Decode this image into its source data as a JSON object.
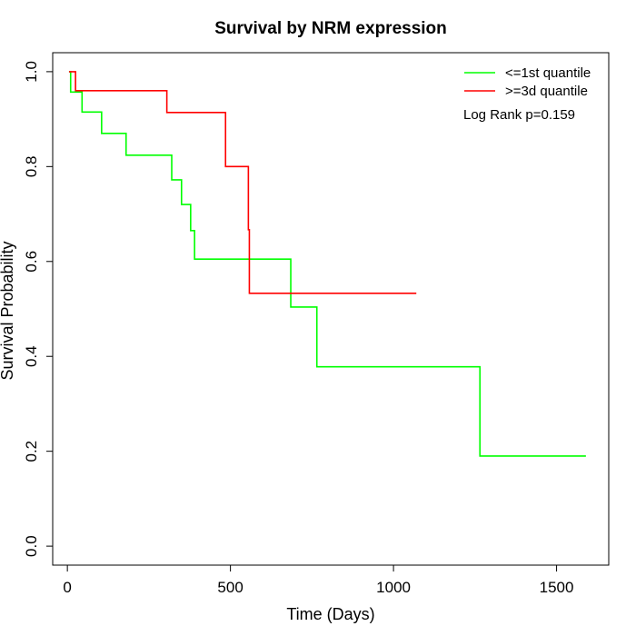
{
  "chart_data": {
    "type": "line",
    "title": "Survival by NRM expression",
    "xlabel": "Time (Days)",
    "ylabel": "Survival Probability",
    "xlim": [
      -45,
      1660
    ],
    "ylim": [
      -0.04,
      1.04
    ],
    "x_ticks": [
      0,
      500,
      1000,
      1500
    ],
    "y_ticks": [
      0.0,
      0.2,
      0.4,
      0.6,
      0.8,
      1.0
    ],
    "x_tick_labels": [
      "0",
      "500",
      "1000",
      "1500"
    ],
    "y_tick_labels": [
      "0.0",
      "0.2",
      "0.4",
      "0.6",
      "0.8",
      "1.0"
    ],
    "grid": false,
    "legend_position": "top-right",
    "annotation": "Log Rank p=0.159",
    "series": [
      {
        "name": "<=1st quantile",
        "color": "#00ff00",
        "step": true,
        "x": [
          5,
          10,
          45,
          105,
          180,
          320,
          350,
          378,
          390,
          685,
          765,
          1265,
          1590
        ],
        "y": [
          1.0,
          0.957,
          0.915,
          0.87,
          0.824,
          0.772,
          0.72,
          0.665,
          0.605,
          0.504,
          0.378,
          0.19,
          0.19
        ]
      },
      {
        "name": ">=3d quantile",
        "color": "#ff0000",
        "step": true,
        "x": [
          5,
          25,
          305,
          485,
          555,
          558,
          1070
        ],
        "y": [
          1.0,
          0.96,
          0.914,
          0.8,
          0.667,
          0.533,
          0.533
        ]
      }
    ]
  }
}
